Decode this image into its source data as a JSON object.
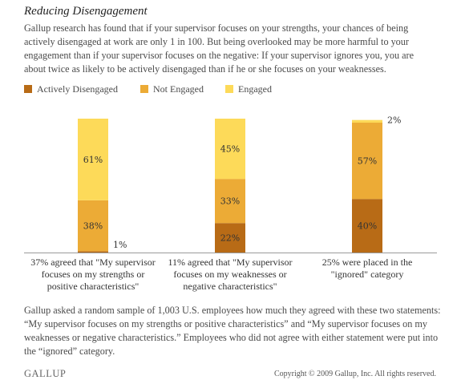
{
  "title": "Reducing Disengagement",
  "intro": "Gallup research has found that if your supervisor focuses on your strengths, your chances of being actively disengaged at work are only 1 in 100. But being overlooked may be more harmful to your engagement than if your supervisor focuses on the negative: If your supervisor ignores you, you are about twice as likely to be actively disengaged than if he or she focuses on your weaknesses.",
  "footnote": "Gallup asked a random sample of 1,003 U.S. employees how much they agreed with these two statements: “My supervisor focuses on my strengths or positive characteristics” and “My supervisor focuses on my weaknesses or negative characteristics.” Employees who did not agree with either statement were put into the “ignored” category.",
  "logo": "GALLUP",
  "copyright": "Copyright © 2009 Gallup, Inc. All rights reserved.",
  "chart_data": {
    "type": "bar",
    "stacked": true,
    "categories": [
      [
        "37% agreed that \"My supervisor",
        "focuses on my strengths or",
        "positive characteristics\""
      ],
      [
        "11% agreed that \"My supervisor",
        "focuses on my weaknesses or",
        "negative characteristics\""
      ],
      [
        "25% were placed in the",
        "\"ignored\" category"
      ]
    ],
    "series": [
      {
        "name": "Actively Disengaged",
        "color": "#b86b16",
        "values": [
          1,
          22,
          40
        ]
      },
      {
        "name": "Not Engaged",
        "color": "#ecab36",
        "values": [
          38,
          33,
          57
        ]
      },
      {
        "name": "Engaged",
        "color": "#fdda59",
        "values": [
          61,
          45,
          2
        ]
      }
    ],
    "ylim": [
      0,
      100
    ],
    "legend": "top-left"
  }
}
